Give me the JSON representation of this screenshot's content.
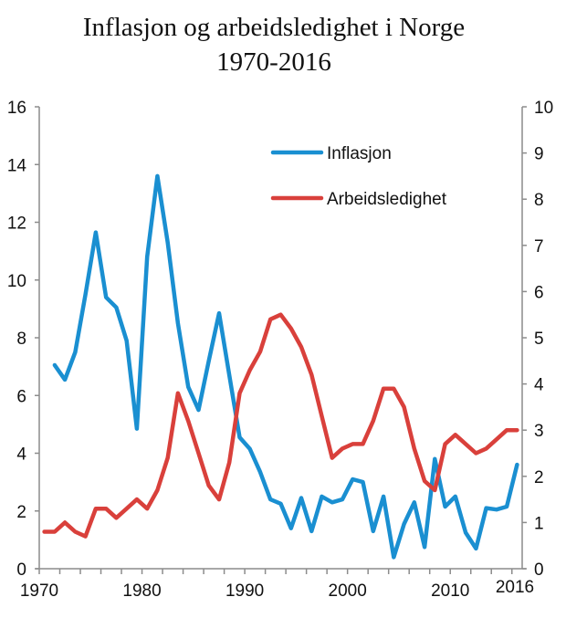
{
  "chart_data": {
    "type": "line",
    "title": "Inflasjon og arbeidsledighet i Norge",
    "subtitle": "1970-2016",
    "xlabel": "",
    "ylabel_left": "",
    "ylabel_right": "",
    "x": [
      1970,
      1971,
      1972,
      1973,
      1974,
      1975,
      1976,
      1977,
      1978,
      1979,
      1980,
      1981,
      1982,
      1983,
      1984,
      1985,
      1986,
      1987,
      1988,
      1989,
      1990,
      1991,
      1992,
      1993,
      1994,
      1995,
      1996,
      1997,
      1998,
      1999,
      2000,
      2001,
      2002,
      2003,
      2004,
      2005,
      2006,
      2007,
      2008,
      2009,
      2010,
      2011,
      2012,
      2013,
      2014,
      2015,
      2016
    ],
    "x_tick_labels": [
      "1970",
      "1980",
      "1990",
      "2000",
      "2010",
      "2016"
    ],
    "left_axis": {
      "ylim": [
        0,
        16
      ],
      "ticks": [
        "0",
        "2",
        "4",
        "6",
        "8",
        "10",
        "12",
        "14",
        "16"
      ]
    },
    "right_axis": {
      "ylim": [
        0,
        10
      ],
      "ticks": [
        "0",
        "1",
        "2",
        "3",
        "4",
        "5",
        "6",
        "7",
        "8",
        "9",
        "10"
      ]
    },
    "legend": {
      "placement": "top-right"
    },
    "series": [
      {
        "name": "Inflasjon",
        "axis": "left",
        "color": "#1a8fd1",
        "values": [
          null,
          7.05,
          6.55,
          7.5,
          9.5,
          11.65,
          9.4,
          9.05,
          7.9,
          4.85,
          10.8,
          13.6,
          11.3,
          8.5,
          6.3,
          5.5,
          7.2,
          8.85,
          6.7,
          4.55,
          4.15,
          3.35,
          2.4,
          2.25,
          1.4,
          2.45,
          1.3,
          2.5,
          2.3,
          2.4,
          3.1,
          3.0,
          1.3,
          2.5,
          0.4,
          1.55,
          2.3,
          0.75,
          3.8,
          2.15,
          2.5,
          1.25,
          0.7,
          2.1,
          2.05,
          2.15,
          3.6
        ]
      },
      {
        "name": "Arbeidsledighet",
        "axis": "right",
        "color": "#d9403b",
        "values": [
          0.8,
          0.8,
          1.0,
          0.8,
          0.7,
          1.3,
          1.3,
          1.1,
          1.3,
          1.5,
          1.3,
          1.7,
          2.4,
          3.8,
          3.2,
          2.5,
          1.8,
          1.5,
          2.3,
          3.8,
          4.3,
          4.7,
          5.4,
          5.5,
          5.2,
          4.8,
          4.2,
          3.3,
          2.4,
          2.6,
          2.7,
          2.7,
          3.2,
          3.9,
          3.9,
          3.5,
          2.6,
          1.9,
          1.7,
          2.7,
          2.9,
          2.7,
          2.5,
          2.6,
          2.8,
          3.0,
          3.0
        ]
      }
    ],
    "grid": false
  }
}
